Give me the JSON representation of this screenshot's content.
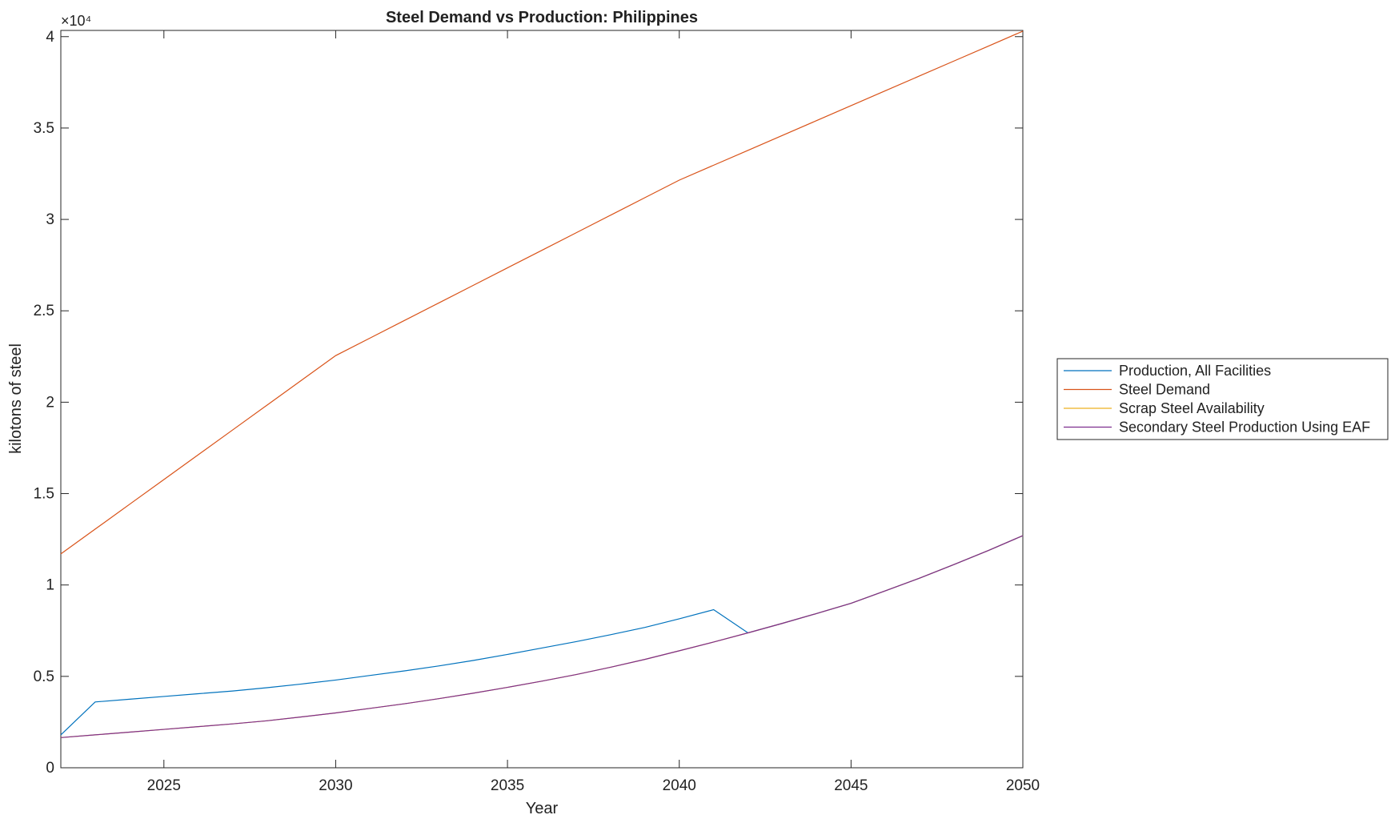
{
  "chart_data": {
    "type": "line",
    "title": "Steel Demand vs Production: Philippines",
    "xlabel": "Year",
    "ylabel": "kilotons of steel",
    "y_exponent_label": "×10⁴",
    "x": [
      2022,
      2023,
      2024,
      2025,
      2026,
      2027,
      2028,
      2029,
      2030,
      2031,
      2032,
      2033,
      2034,
      2035,
      2036,
      2037,
      2038,
      2039,
      2040,
      2041,
      2042,
      2043,
      2044,
      2045,
      2046,
      2047,
      2048,
      2049,
      2050
    ],
    "series": [
      {
        "name": "Production, All Facilities",
        "color": "#0072BD",
        "values": [
          1800,
          3600,
          3750,
          3900,
          4050,
          4200,
          4380,
          4580,
          4800,
          5050,
          5300,
          5570,
          5870,
          6200,
          6550,
          6900,
          7280,
          7680,
          8150,
          8650,
          7380,
          7900,
          8440,
          9000,
          9680,
          10380,
          11120,
          11890,
          12700
        ]
      },
      {
        "name": "Steel Demand",
        "color": "#D95319",
        "values": [
          11700,
          13056,
          14413,
          15769,
          17125,
          18481,
          19838,
          21194,
          22550,
          23510,
          24470,
          25430,
          26390,
          27350,
          28310,
          29270,
          30230,
          31190,
          32150,
          32965,
          33780,
          34595,
          35410,
          36225,
          37040,
          37855,
          38670,
          39485,
          40300
        ]
      },
      {
        "name": "Scrap Steel Availability",
        "color": "#EDB120",
        "values": [
          1650,
          1800,
          1950,
          2100,
          2250,
          2400,
          2570,
          2780,
          3000,
          3250,
          3500,
          3780,
          4080,
          4400,
          4740,
          5100,
          5500,
          5930,
          6400,
          6880,
          7380,
          7900,
          8440,
          9000,
          9680,
          10380,
          11120,
          11890,
          12700
        ]
      },
      {
        "name": "Secondary Steel Production Using EAF",
        "color": "#7E2F8E",
        "values": [
          1650,
          1800,
          1950,
          2100,
          2250,
          2400,
          2570,
          2780,
          3000,
          3250,
          3500,
          3780,
          4080,
          4400,
          4740,
          5100,
          5500,
          5930,
          6400,
          6880,
          7380,
          7900,
          8440,
          9000,
          9680,
          10380,
          11120,
          11890,
          12700
        ]
      }
    ],
    "xlim": [
      2022,
      2050
    ],
    "xticks": [
      2025,
      2030,
      2035,
      2040,
      2045,
      2050
    ],
    "ylim": [
      0,
      40340
    ],
    "yticks": [
      0,
      {
        "value": 5000,
        "label": "0.5"
      },
      {
        "value": 10000,
        "label": "1"
      },
      {
        "value": 15000,
        "label": "1.5"
      },
      {
        "value": 20000,
        "label": "2"
      },
      {
        "value": 25000,
        "label": "2.5"
      },
      {
        "value": 30000,
        "label": "3"
      },
      {
        "value": 35000,
        "label": "3.5"
      },
      {
        "value": 40000,
        "label": "4"
      }
    ]
  }
}
